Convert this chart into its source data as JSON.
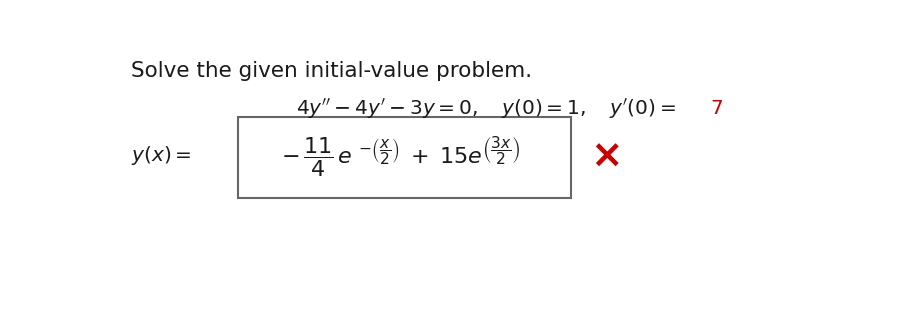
{
  "background_color": "#ffffff",
  "title_text": "Solve the given initial-value problem.",
  "title_fontsize": 15.5,
  "title_fontweight": "normal",
  "eq_fontsize": 14.5,
  "red_color": "#cc0000",
  "black_color": "#1a1a1a",
  "formula_fontsize": 16,
  "ylabel_fontsize": 14.5,
  "cross_fontsize": 28
}
